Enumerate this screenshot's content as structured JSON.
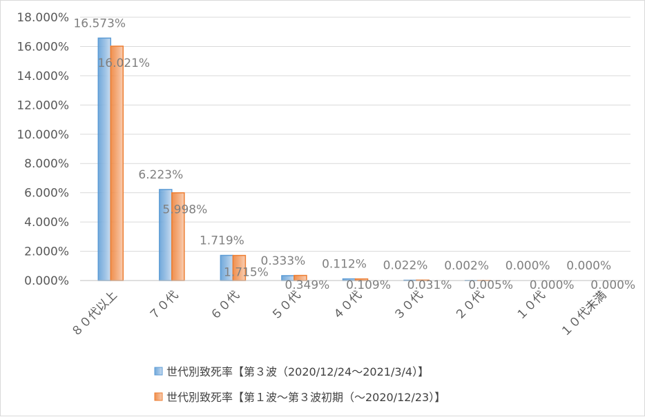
{
  "chart_data": {
    "type": "bar",
    "categories": [
      "８０代以上",
      "７０代",
      "６０代",
      "５０代",
      "４０代",
      "３０代",
      "２０代",
      "１０代",
      "１０代未満"
    ],
    "series": [
      {
        "name": "世代別致死率【第３波（2020/12/24～2021/3/4）】",
        "values": [
          16.573,
          6.223,
          1.719,
          0.333,
          0.112,
          0.022,
          0.002,
          0.0,
          0.0
        ],
        "labels": [
          "16.573%",
          "6.223%",
          "1.719%",
          "0.333%",
          "0.112%",
          "0.022%",
          "0.002%",
          "0.000%",
          "0.000%"
        ],
        "color": "#5b9bd5",
        "fill_light": "#c9dcf0"
      },
      {
        "name": "世代別致死率【第１波～第３波初期（～2020/12/23）】",
        "values": [
          16.021,
          5.998,
          1.715,
          0.349,
          0.109,
          0.031,
          0.005,
          0.0,
          0.0
        ],
        "labels": [
          "16.021%",
          "5.998%",
          "1.715%",
          "0.349%",
          "0.109%",
          "0.031%",
          "0.005%",
          "0.000%",
          "0.000%"
        ],
        "color": "#ed7d31",
        "fill_light": "#f9cfb5"
      }
    ],
    "ylim": [
      0,
      18
    ],
    "yticks": [
      0,
      2,
      4,
      6,
      8,
      10,
      12,
      14,
      16,
      18
    ],
    "ytick_labels": [
      "0.000%",
      "2.000%",
      "4.000%",
      "6.000%",
      "8.000%",
      "10.000%",
      "12.000%",
      "14.000%",
      "16.000%",
      "18.000%"
    ],
    "grid": true,
    "legend_position": "bottom",
    "title": "",
    "xlabel": "",
    "ylabel": ""
  },
  "colors": {
    "gridline": "#d9d9d9",
    "axis": "#bfbfbf"
  }
}
